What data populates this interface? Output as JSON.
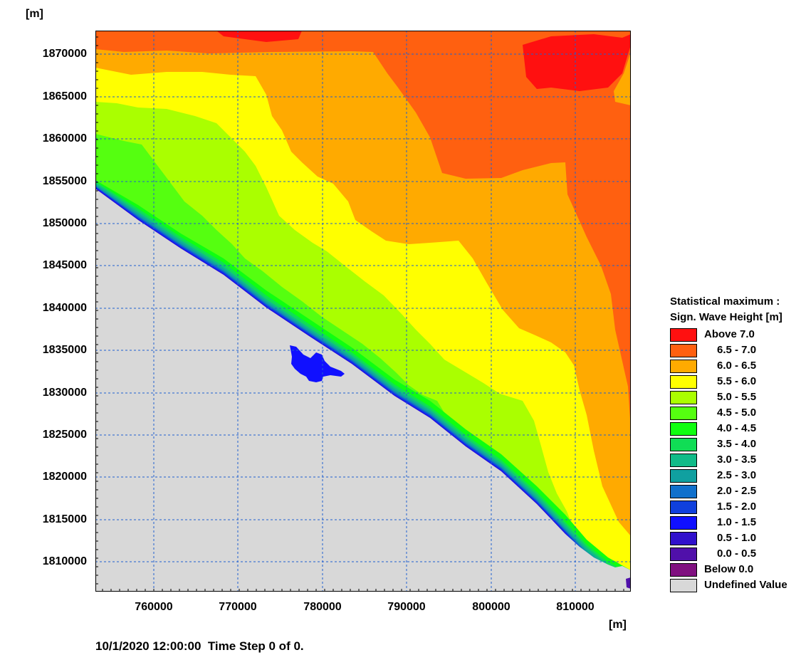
{
  "map": {
    "y_unit": "[m]",
    "x_unit": "[m]",
    "y_ticks": [
      "1870000",
      "1865000",
      "1860000",
      "1855000",
      "1850000",
      "1845000",
      "1840000",
      "1835000",
      "1830000",
      "1825000",
      "1820000",
      "1815000",
      "1810000"
    ],
    "x_ticks": [
      "760000",
      "770000",
      "780000",
      "790000",
      "800000",
      "810000"
    ],
    "grid": "dashed blue"
  },
  "legend": {
    "title_line1": "Statistical maximum :",
    "title_line2": "Sign. Wave Height [m]",
    "items": [
      {
        "label": "Above 7.0",
        "color": "#ff1010"
      },
      {
        "label": "6.5 - 7.0",
        "color": "#ff6010"
      },
      {
        "label": "6.0 - 6.5",
        "color": "#ffaa00"
      },
      {
        "label": "5.5 - 6.0",
        "color": "#ffff00"
      },
      {
        "label": "5.0 - 5.5",
        "color": "#aaff00"
      },
      {
        "label": "4.5 - 5.0",
        "color": "#55ff10"
      },
      {
        "label": "4.0 - 4.5",
        "color": "#10ff10"
      },
      {
        "label": "3.5 - 4.0",
        "color": "#10dd55"
      },
      {
        "label": "3.0 - 3.5",
        "color": "#10bb88"
      },
      {
        "label": "2.5 - 3.0",
        "color": "#10a0a0"
      },
      {
        "label": "2.0 - 2.5",
        "color": "#1070cc"
      },
      {
        "label": "1.5 - 2.0",
        "color": "#1040dd"
      },
      {
        "label": "1.0 - 1.5",
        "color": "#1010ff"
      },
      {
        "label": "0.5 - 1.0",
        "color": "#3010cc"
      },
      {
        "label": "0.0 - 0.5",
        "color": "#5010aa"
      },
      {
        "label": "Below 0.0",
        "color": "#801080"
      },
      {
        "label": "Undefined Value",
        "color": "#d8d8d8"
      }
    ]
  },
  "footer": "10/1/2020 12:00:00  Time Step 0 of 0."
}
